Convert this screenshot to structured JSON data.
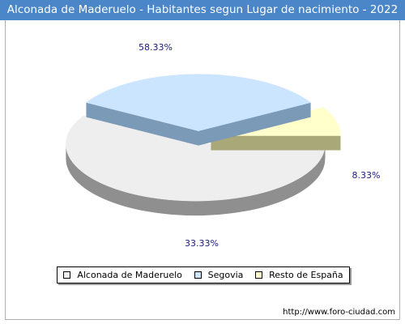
{
  "chart_data": {
    "type": "pie",
    "title": "Alconada de Maderuelo - Habitantes segun Lugar de nacimiento - 2022",
    "categories": [
      "Alconada de Maderuelo",
      "Segovia",
      "Resto de España"
    ],
    "values": [
      58.33,
      33.33,
      8.33
    ],
    "value_labels": [
      "58.33%",
      "33.33%",
      "8.33%"
    ],
    "colors": [
      "#eeeeee",
      "#cce5ff",
      "#ffffcc"
    ],
    "side_colors": [
      "#8f8f8f",
      "#7a9ab8",
      "#a8a878"
    ],
    "legend_position": "bottom"
  },
  "footer": {
    "url": "http://www.foro-ciudad.com"
  }
}
